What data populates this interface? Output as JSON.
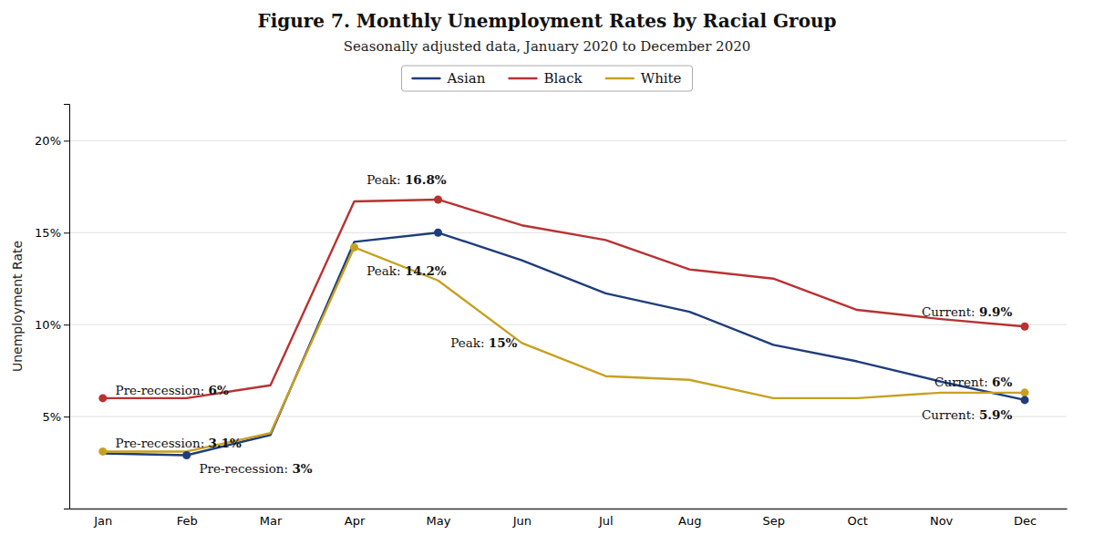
{
  "chart_data": {
    "type": "line",
    "title": "Figure 7. Monthly Unemployment Rates by Racial Group",
    "subtitle": "Seasonally adjusted data, January 2020 to December 2020",
    "y_label": "Unemployment Rate",
    "categories": [
      "Jan",
      "Feb",
      "Mar",
      "Apr",
      "May",
      "Jun",
      "Jul",
      "Aug",
      "Sep",
      "Oct",
      "Nov",
      "Dec"
    ],
    "series": [
      {
        "name": "Asian",
        "color": "#1f3d7a",
        "values": [
          3.0,
          2.9,
          4.0,
          14.5,
          15.0,
          13.5,
          11.7,
          10.7,
          8.9,
          8.0,
          6.9,
          5.9
        ]
      },
      {
        "name": "Black",
        "color": "#b83232",
        "values": [
          6.0,
          6.0,
          6.7,
          16.7,
          16.8,
          15.4,
          14.6,
          13.0,
          12.5,
          10.8,
          10.3,
          9.9
        ]
      },
      {
        "name": "White",
        "color": "#c8a020",
        "values": [
          3.1,
          3.1,
          4.1,
          14.2,
          12.4,
          9.0,
          7.2,
          7.0,
          6.0,
          6.0,
          6.3,
          6.3
        ]
      }
    ],
    "ylim": [
      0,
      22
    ],
    "yticks": [
      {
        "value": 5,
        "label": "5%"
      },
      {
        "value": 10,
        "label": "10%"
      },
      {
        "value": 15,
        "label": "15%"
      },
      {
        "value": 20,
        "label": "20%"
      }
    ],
    "grid": true,
    "legend": "top",
    "annotations": [
      {
        "text": "Pre-recession: 6%",
        "series": "Black",
        "x": "Jan",
        "y": 6.0
      },
      {
        "text": "Pre-recession: 3.1%",
        "series": "White",
        "x": "Jan",
        "y": 3.1
      },
      {
        "text": "Pre-recession: 3%",
        "series": "Asian",
        "x": "Feb",
        "y": 2.9
      },
      {
        "text": "Peak: 16.8%",
        "series": "Black",
        "x": "May",
        "y": 16.8
      },
      {
        "text": "Peak: 15%",
        "series": "Asian",
        "x": "May",
        "y": 15.0
      },
      {
        "text": "Peak: 14.2%",
        "series": "White",
        "x": "Apr",
        "y": 14.2
      },
      {
        "text": "Current: 9.9%",
        "series": "Black",
        "x": "Dec",
        "y": 9.9
      },
      {
        "text": "Current: 6%",
        "series": "White",
        "x": "Dec",
        "y": 6.3
      },
      {
        "text": "Current: 5.9%",
        "series": "Asian",
        "x": "Dec",
        "y": 5.9
      }
    ]
  }
}
